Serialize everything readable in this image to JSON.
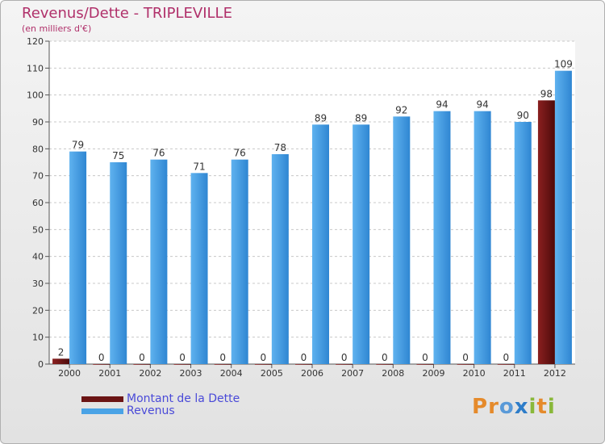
{
  "chart_data": {
    "type": "bar",
    "title": "Revenus/Dette - TRIPLEVILLE",
    "subtitle": "(en milliers d'€)",
    "categories": [
      "2000",
      "2001",
      "2002",
      "2003",
      "2004",
      "2005",
      "2006",
      "2007",
      "2008",
      "2009",
      "2010",
      "2011",
      "2012"
    ],
    "series": [
      {
        "name": "Montant de la Dette",
        "values": [
          2,
          0,
          0,
          0,
          0,
          0,
          0,
          0,
          0,
          0,
          0,
          0,
          98
        ],
        "color": "#6b1414"
      },
      {
        "name": "Revenus",
        "values": [
          79,
          75,
          76,
          71,
          76,
          78,
          89,
          89,
          92,
          94,
          94,
          90,
          109
        ],
        "color": "#4aa3e6"
      }
    ],
    "ylim": [
      0,
      120
    ],
    "yticks": [
      0,
      10,
      20,
      30,
      40,
      50,
      60,
      70,
      80,
      90,
      100,
      110,
      120
    ],
    "grid": true,
    "legend_position": "bottom-left"
  },
  "legend": {
    "items": [
      {
        "label": "Montant de la Dette",
        "color": "#6b1414"
      },
      {
        "label": "Revenus",
        "color": "#4aa3e6"
      }
    ]
  },
  "logo": {
    "letters": [
      "P",
      "r",
      "o",
      "x",
      "i",
      "t",
      "i"
    ]
  }
}
